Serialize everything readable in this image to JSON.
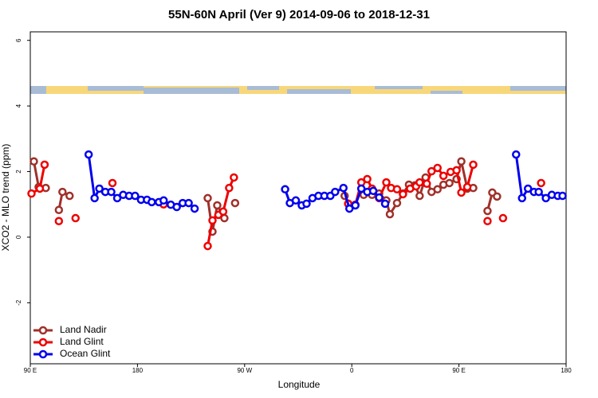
{
  "chart_data": {
    "type": "line",
    "title": "55N-60N April (Ver 9)   2014-09-06 to 2018-12-31",
    "x_label": "Longitude",
    "y_label": "XCO2 - MLO trend (ppm)",
    "xlim": [
      90,
      540
    ],
    "ylim": [
      -3.86,
      6.26
    ],
    "xticks": [
      {
        "value": 90,
        "label": "90 E"
      },
      {
        "value": 180,
        "label": "180"
      },
      {
        "value": 270,
        "label": "90 W"
      },
      {
        "value": 360,
        "label": "0"
      },
      {
        "value": 450,
        "label": "90 E"
      },
      {
        "value": 540,
        "label": "180"
      }
    ],
    "yticks": [
      -2,
      0,
      2,
      4,
      6
    ],
    "legend": "lower left",
    "series": [
      {
        "name": "Land Nadir",
        "color": "#a0302a",
        "x": [
          93,
          97,
          103,
          null,
          114,
          117,
          123,
          null,
          239,
          243,
          247,
          253,
          null,
          262,
          null,
          354,
          357,
          null,
          370,
          377,
          383,
          389,
          392,
          398,
          403,
          408,
          413,
          417,
          422,
          427,
          432,
          437,
          442,
          448,
          452,
          457,
          462,
          null,
          474,
          478,
          482
        ],
        "values": [
          2.31,
          1.53,
          1.5,
          null,
          0.83,
          1.38,
          1.26,
          null,
          1.19,
          0.17,
          0.97,
          0.58,
          null,
          1.04,
          null,
          1.26,
          1.02,
          null,
          1.29,
          1.29,
          1.33,
          1.12,
          0.7,
          1.04,
          1.33,
          1.6,
          1.58,
          1.26,
          1.82,
          1.38,
          1.46,
          1.6,
          1.65,
          1.77,
          2.31,
          1.48,
          1.5,
          null,
          0.8,
          1.36,
          1.24
        ]
      },
      {
        "name": "Land Glint",
        "color": "#ee0000",
        "x": [
          91,
          98,
          102,
          null,
          114,
          null,
          128,
          null,
          159,
          null,
          202,
          null,
          239,
          243,
          248,
          252,
          257,
          261,
          null,
          357,
          363,
          368,
          373,
          377,
          383,
          389,
          393,
          398,
          403,
          409,
          414,
          417,
          423,
          427,
          432,
          437,
          443,
          448,
          452,
          457,
          462,
          null,
          474,
          null,
          487,
          null,
          519
        ],
        "values": [
          1.33,
          1.48,
          2.21,
          null,
          0.49,
          null,
          0.58,
          null,
          1.65,
          null,
          1.0,
          null,
          -0.27,
          0.51,
          0.68,
          0.78,
          1.5,
          1.82,
          null,
          1.02,
          0.99,
          1.67,
          1.77,
          1.48,
          1.19,
          1.67,
          1.5,
          1.46,
          1.31,
          1.48,
          1.55,
          1.67,
          1.63,
          2.01,
          2.11,
          1.87,
          1.99,
          2.04,
          1.36,
          1.53,
          2.21,
          null,
          0.49,
          null,
          0.58,
          null,
          1.65
        ]
      },
      {
        "name": "Ocean Glint",
        "color": "#0000ee",
        "x": [
          139,
          144,
          148,
          153,
          158,
          163,
          168,
          173,
          178,
          183,
          188,
          192,
          198,
          202,
          208,
          213,
          218,
          223,
          228,
          null,
          304,
          308,
          313,
          318,
          322,
          327,
          332,
          337,
          342,
          346,
          353,
          358,
          363,
          368,
          373,
          378,
          383,
          388,
          null,
          498,
          503,
          508,
          513,
          517,
          523,
          528,
          533,
          537
        ],
        "values": [
          2.52,
          1.19,
          1.48,
          1.38,
          1.38,
          1.19,
          1.29,
          1.26,
          1.26,
          1.14,
          1.14,
          1.07,
          1.07,
          1.12,
          0.99,
          0.92,
          1.04,
          1.04,
          0.87,
          null,
          1.46,
          1.04,
          1.12,
          0.97,
          1.02,
          1.19,
          1.26,
          1.26,
          1.26,
          1.38,
          1.5,
          0.87,
          0.97,
          1.48,
          1.38,
          1.41,
          1.21,
          1.02,
          null,
          2.52,
          1.19,
          1.48,
          1.38,
          1.38,
          1.19,
          1.29,
          1.26,
          1.26
        ]
      }
    ]
  }
}
